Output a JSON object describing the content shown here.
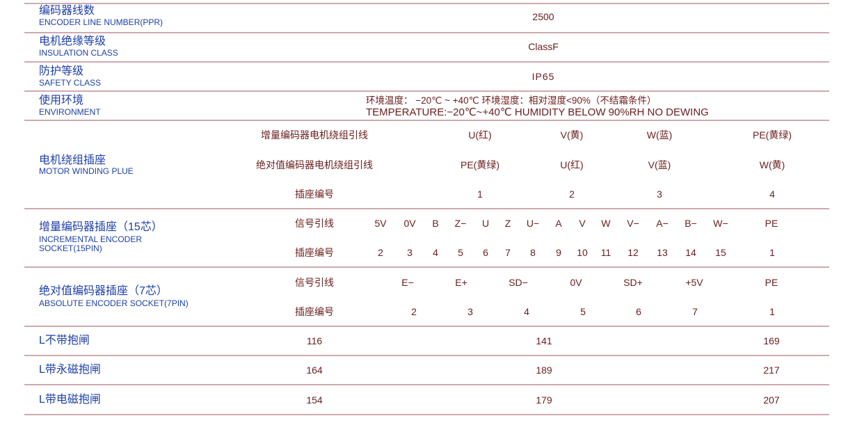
{
  "rows": {
    "encoder": {
      "zh": "编码器线数",
      "en": "ENCODER LINE NUMBER(PPR)",
      "value": "2500"
    },
    "insulation": {
      "zh": "电机绝缘等级",
      "en": "INSULATION CLASS",
      "value": "ClassF"
    },
    "safety": {
      "zh": "防护等级",
      "en": "SAFETY CLASS",
      "value": "IP65"
    },
    "environment": {
      "zh": "使用环境",
      "en": "ENVIRONMENT",
      "value_zh": "环境温度： −20℃ ~ +40℃    环境湿度：相对湿度<90%（不结霜条件）",
      "value_en": "TEMPERATURE:−20℃~+40℃   HUMIDITY BELOW 90%RH NO DEWING"
    },
    "winding": {
      "zh": "电机绕组插座",
      "en": "MOTOR WINDING PLUE",
      "sub": [
        {
          "label": "增量编码器电机绕组引线",
          "values": [
            "U(红)",
            "V(黄)",
            "W(蓝)",
            "PE(黄绿)"
          ]
        },
        {
          "label": "绝对值编码器电机绕组引线",
          "values": [
            "PE(黄绿)",
            "U(红)",
            "V(蓝)",
            "W(黄)"
          ]
        },
        {
          "label": "插座编号",
          "values": [
            "1",
            "2",
            "3",
            "4"
          ]
        }
      ]
    },
    "incremental": {
      "zh": "增量编码器插座（15芯）",
      "en1": "INCREMENTAL ENCODER",
      "en2": "SOCKET(15PIN)",
      "sub": [
        {
          "label": "信号引线",
          "values": [
            "5V",
            "0V",
            "B",
            "Z−",
            "U",
            "Z",
            "U−",
            "A",
            "V",
            "W",
            "V−",
            "A−",
            "B−",
            "W−",
            "PE"
          ]
        },
        {
          "label": "插座编号",
          "values": [
            "2",
            "3",
            "4",
            "5",
            "6",
            "7",
            "8",
            "9",
            "10",
            "11",
            "12",
            "13",
            "14",
            "15",
            "1"
          ]
        }
      ]
    },
    "absolute": {
      "zh": "绝对值编码器插座（7芯）",
      "en": "ABSOLUTE ENCODER SOCKET(7PIN)",
      "sub": [
        {
          "label": "信号引线",
          "values": [
            "E−",
            "E+",
            "SD−",
            "0V",
            "SD+",
            "+5V",
            "PE"
          ]
        },
        {
          "label": "插座编号",
          "values": [
            "2",
            "3",
            "4",
            "5",
            "6",
            "7",
            "1"
          ]
        }
      ]
    },
    "lengths": [
      {
        "zh": "L不带抱闸",
        "values": [
          "116",
          "141",
          "169"
        ]
      },
      {
        "zh": "L带永磁抱闸",
        "values": [
          "164",
          "189",
          "217"
        ]
      },
      {
        "zh": "L带电磁抱闸",
        "values": [
          "154",
          "179",
          "207"
        ]
      }
    ]
  },
  "colors": {
    "label": "#1d3fa8",
    "value": "#6a1c1c",
    "rule": "#cfa9b0"
  }
}
